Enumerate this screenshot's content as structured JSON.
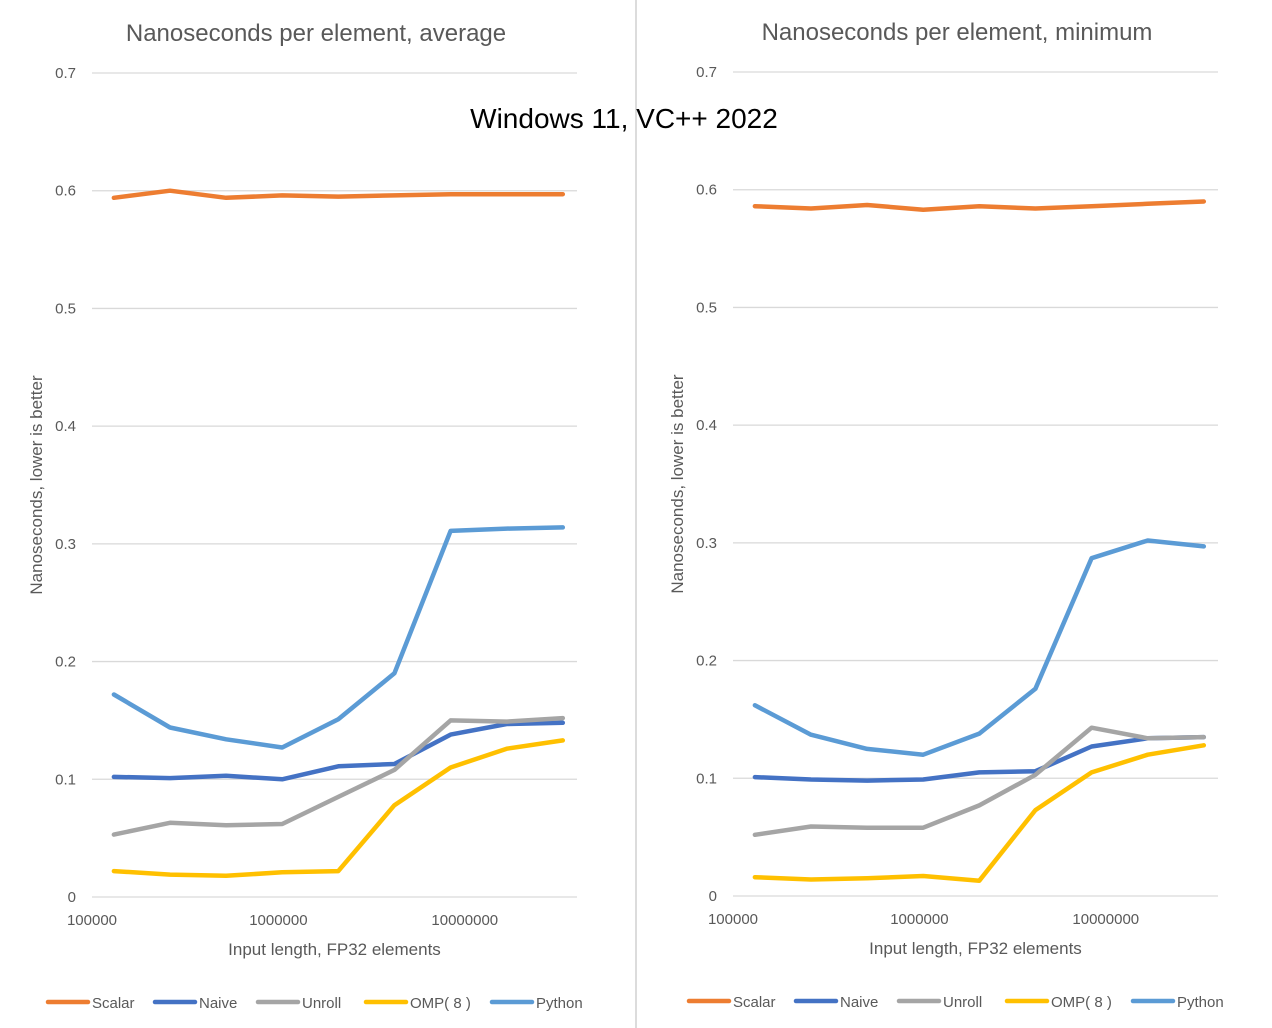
{
  "page_title": "Windows 11, VC++ 2022",
  "chart_data": [
    {
      "type": "line",
      "title": "Nanoseconds per element, average",
      "xlabel": "Input length, FP32 elements",
      "ylabel": "Nanoseconds, lower is better",
      "x_scale": "log",
      "xlim": [
        100000,
        40000000
      ],
      "x_ticks": [
        100000,
        1000000,
        10000000
      ],
      "x_tick_labels": [
        "100000",
        "1000000",
        "10000000"
      ],
      "ylim": [
        0,
        0.7
      ],
      "y_ticks": [
        0,
        0.1,
        0.2,
        0.3,
        0.4,
        0.5,
        0.6,
        0.7
      ],
      "y_tick_labels": [
        "0",
        "0.1",
        "0.2",
        "0.3",
        "0.4",
        "0.5",
        "0.6",
        "0.7"
      ],
      "grid": true,
      "legend": "bottom",
      "x": [
        131072,
        262144,
        524288,
        1048576,
        2097152,
        4194304,
        8388608,
        16777216,
        33554432
      ],
      "series": [
        {
          "name": "Scalar",
          "color": "#ed7d31",
          "values": [
            0.594,
            0.6,
            0.594,
            0.596,
            0.595,
            0.596,
            0.597,
            0.597,
            0.597
          ]
        },
        {
          "name": "Naive",
          "color": "#4472c4",
          "values": [
            0.102,
            0.101,
            0.103,
            0.1,
            0.111,
            0.113,
            0.138,
            0.147,
            0.148
          ]
        },
        {
          "name": "Unroll",
          "color": "#a5a5a5",
          "values": [
            0.053,
            0.063,
            0.061,
            0.062,
            0.085,
            0.108,
            0.15,
            0.149,
            0.152
          ]
        },
        {
          "name": "OMP( 8 )",
          "color": "#ffc000",
          "values": [
            0.022,
            0.019,
            0.018,
            0.021,
            0.022,
            0.078,
            0.11,
            0.126,
            0.133
          ]
        },
        {
          "name": "Python",
          "color": "#5b9bd5",
          "values": [
            0.172,
            0.144,
            0.134,
            0.127,
            0.151,
            0.19,
            0.311,
            0.313,
            0.314
          ]
        }
      ]
    },
    {
      "type": "line",
      "title": "Nanoseconds per element, minimum",
      "xlabel": "Input length, FP32 elements",
      "ylabel": "Nanoseconds, lower is better",
      "x_scale": "log",
      "xlim": [
        100000,
        40000000
      ],
      "x_ticks": [
        100000,
        1000000,
        10000000
      ],
      "x_tick_labels": [
        "100000",
        "1000000",
        "10000000"
      ],
      "ylim": [
        0,
        0.7
      ],
      "y_ticks": [
        0,
        0.1,
        0.2,
        0.3,
        0.4,
        0.5,
        0.6,
        0.7
      ],
      "y_tick_labels": [
        "0",
        "0.1",
        "0.2",
        "0.3",
        "0.4",
        "0.5",
        "0.6",
        "0.7"
      ],
      "grid": true,
      "legend": "bottom",
      "x": [
        131072,
        262144,
        524288,
        1048576,
        2097152,
        4194304,
        8388608,
        16777216,
        33554432
      ],
      "series": [
        {
          "name": "Scalar",
          "color": "#ed7d31",
          "values": [
            0.586,
            0.584,
            0.587,
            0.583,
            0.586,
            0.584,
            0.586,
            0.588,
            0.59
          ]
        },
        {
          "name": "Naive",
          "color": "#4472c4",
          "values": [
            0.101,
            0.099,
            0.098,
            0.099,
            0.105,
            0.106,
            0.127,
            0.134,
            0.135
          ]
        },
        {
          "name": "Unroll",
          "color": "#a5a5a5",
          "values": [
            0.052,
            0.059,
            0.058,
            0.058,
            0.077,
            0.103,
            0.143,
            0.134,
            0.135
          ]
        },
        {
          "name": "OMP( 8 )",
          "color": "#ffc000",
          "values": [
            0.016,
            0.014,
            0.015,
            0.017,
            0.013,
            0.073,
            0.105,
            0.12,
            0.128
          ]
        },
        {
          "name": "Python",
          "color": "#5b9bd5",
          "values": [
            0.162,
            0.137,
            0.125,
            0.12,
            0.138,
            0.176,
            0.287,
            0.302,
            0.297
          ]
        }
      ]
    }
  ]
}
